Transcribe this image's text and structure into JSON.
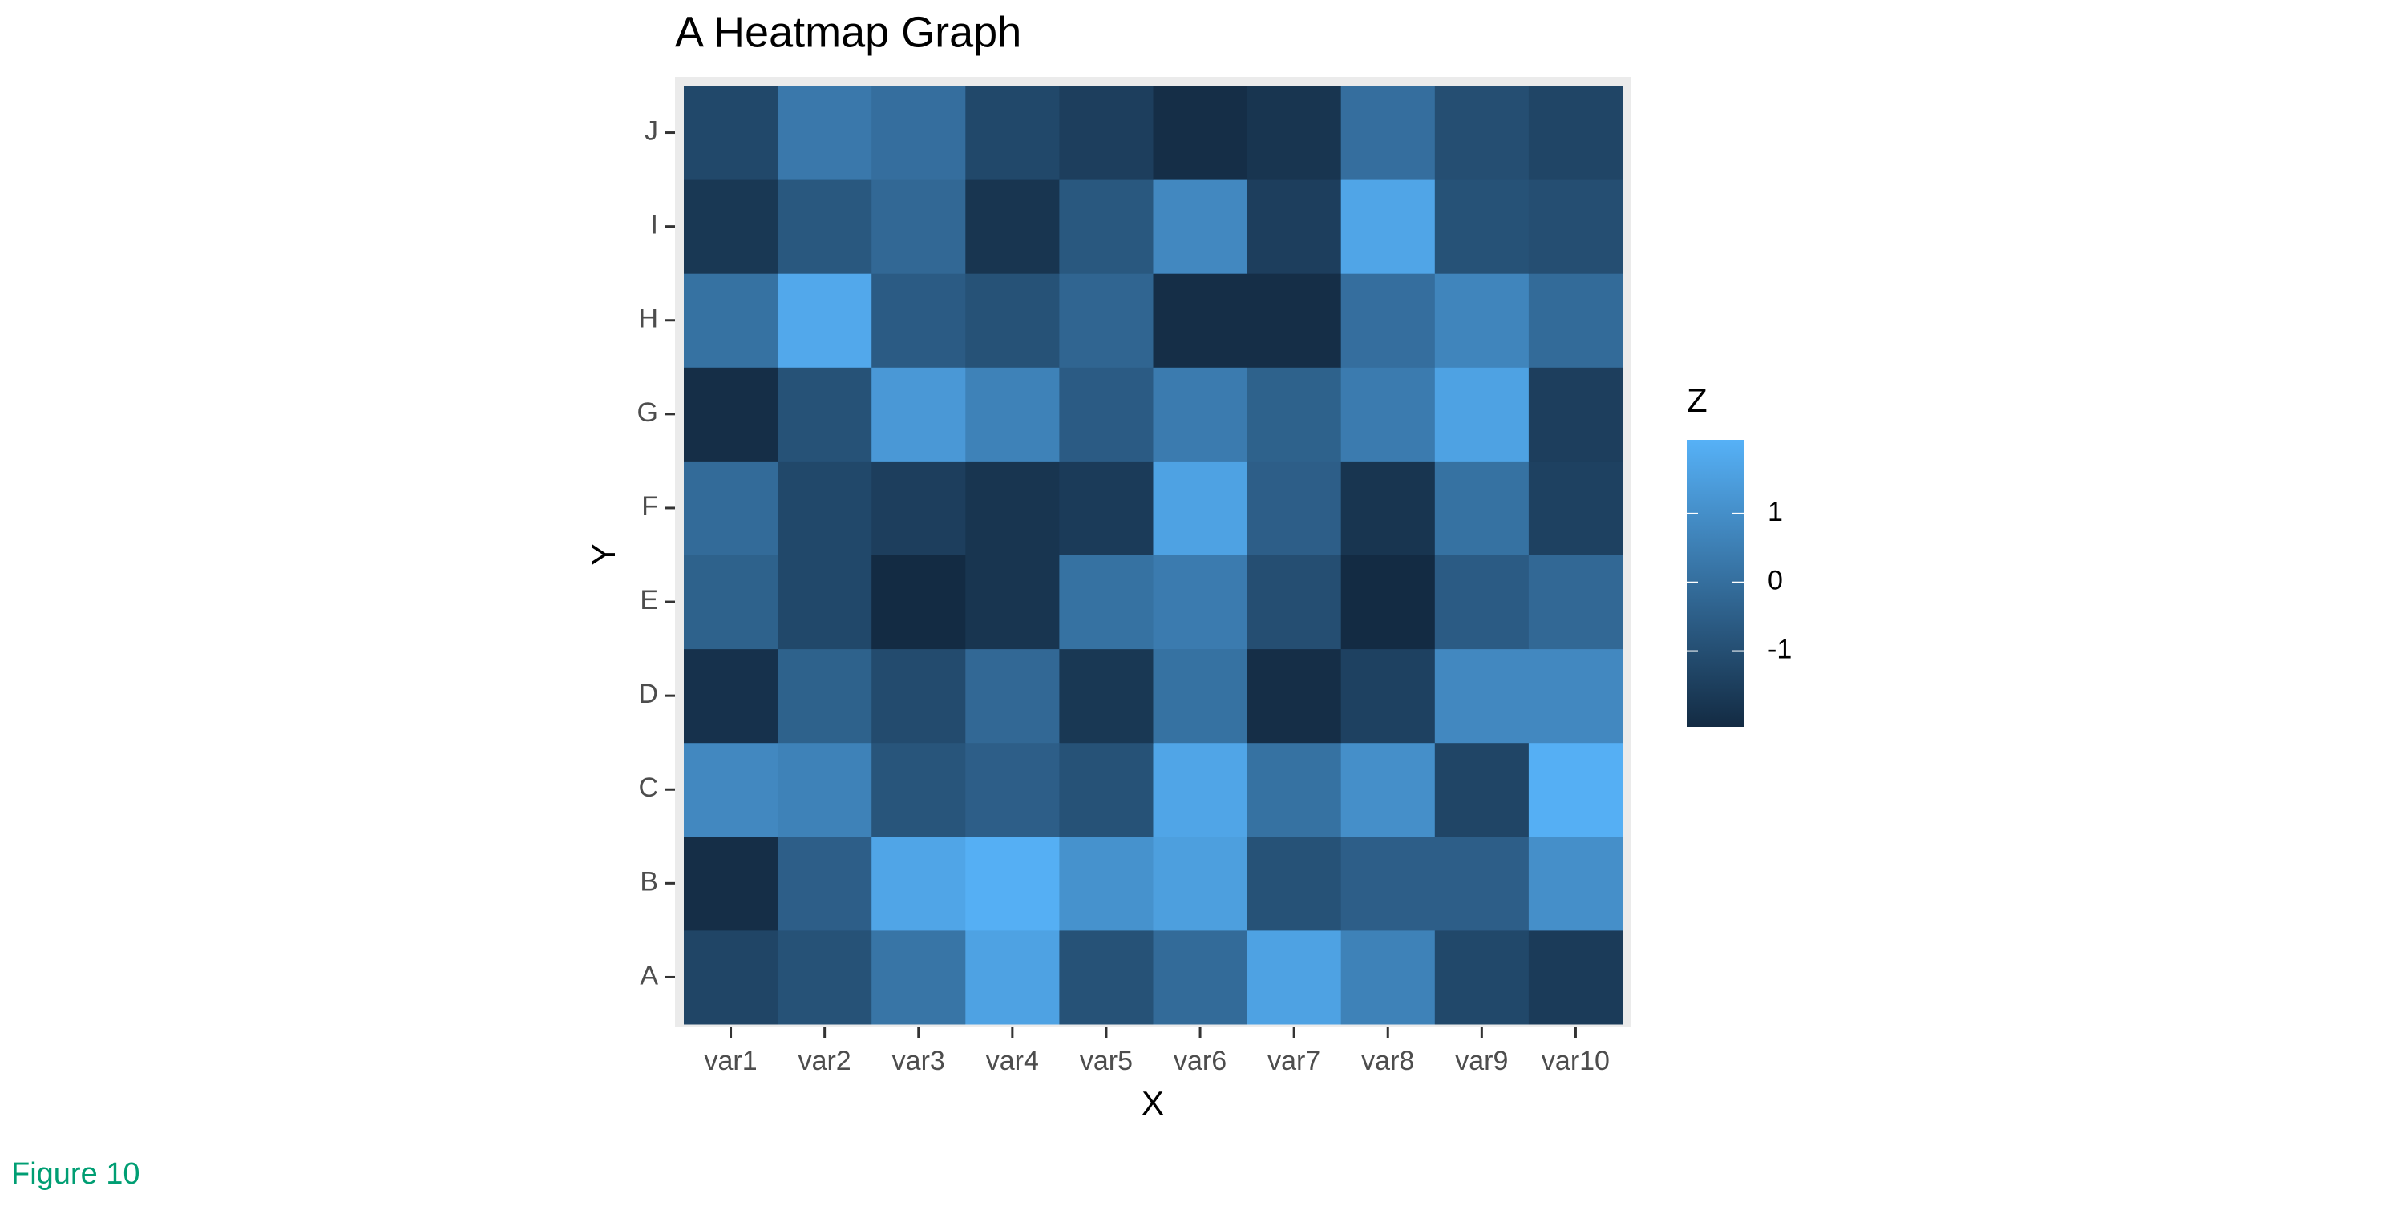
{
  "chart_data": {
    "type": "heatmap",
    "title": "A Heatmap Graph",
    "xlabel": "X",
    "ylabel": "Y",
    "legend_title": "Z",
    "caption": "Figure 10",
    "x": [
      "var1",
      "var2",
      "var3",
      "var4",
      "var5",
      "var6",
      "var7",
      "var8",
      "var9",
      "var10"
    ],
    "y": [
      "A",
      "B",
      "C",
      "D",
      "E",
      "F",
      "G",
      "H",
      "I",
      "J"
    ],
    "z": [
      [
        -1.3,
        -0.9,
        0.2,
        1.6,
        -0.9,
        -0.1,
        1.6,
        0.6,
        -1.2,
        -1.6
      ],
      [
        -2.0,
        -0.5,
        1.7,
        2.0,
        1.1,
        1.5,
        -0.9,
        -0.5,
        -0.5,
        1.0
      ],
      [
        0.8,
        0.6,
        -0.8,
        -0.5,
        -0.9,
        1.7,
        0.1,
        1.0,
        -1.3,
        2.0
      ],
      [
        -1.9,
        -0.4,
        -1.1,
        -0.2,
        -1.7,
        0.1,
        -2.0,
        -1.4,
        0.8,
        0.8
      ],
      [
        -0.4,
        -1.2,
        -2.1,
        -1.8,
        0.1,
        0.4,
        -1.0,
        -2.1,
        -0.6,
        -0.2
      ],
      [
        -0.1,
        -1.2,
        -1.5,
        -1.8,
        -1.6,
        1.6,
        -0.5,
        -1.8,
        0.1,
        -1.4
      ],
      [
        -2.0,
        -0.9,
        1.3,
        0.6,
        -0.6,
        0.4,
        -0.4,
        0.4,
        1.6,
        -1.5
      ],
      [
        0.1,
        1.8,
        -0.6,
        -0.9,
        -0.3,
        -2.0,
        -2.0,
        0.0,
        0.7,
        -0.1
      ],
      [
        -1.7,
        -0.7,
        -0.2,
        -1.8,
        -0.7,
        0.8,
        -1.5,
        1.7,
        -0.9,
        -1.0
      ],
      [
        -1.2,
        0.3,
        0.0,
        -1.2,
        -1.5,
        -2.0,
        -1.8,
        0.0,
        -1.0,
        -1.3
      ]
    ],
    "zlim": [
      -2.1,
      2.07
    ],
    "legend_ticks": [
      -1,
      0,
      1
    ],
    "colors": [
      "#132B43",
      "#56B1F7"
    ],
    "caption_color": "#009E73"
  }
}
